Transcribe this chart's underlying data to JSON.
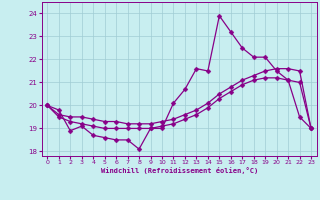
{
  "xlabel": "Windchill (Refroidissement éolien,°C)",
  "bg_color": "#c8eef0",
  "grid_color": "#a0ccd4",
  "line_color": "#880088",
  "marker": "D",
  "marker_size": 2.5,
  "line_width": 0.9,
  "ylim": [
    17.8,
    24.5
  ],
  "xlim": [
    -0.5,
    23.5
  ],
  "yticks": [
    18,
    19,
    20,
    21,
    22,
    23,
    24
  ],
  "xticks": [
    0,
    1,
    2,
    3,
    4,
    5,
    6,
    7,
    8,
    9,
    10,
    11,
    12,
    13,
    14,
    15,
    16,
    17,
    18,
    19,
    20,
    21,
    22,
    23
  ],
  "series": [
    [
      20.0,
      19.8,
      18.9,
      19.1,
      18.7,
      18.6,
      18.5,
      18.5,
      18.1,
      19.0,
      19.0,
      20.1,
      20.7,
      21.6,
      21.5,
      23.9,
      23.2,
      22.5,
      22.1,
      22.1,
      21.5,
      21.1,
      19.5,
      19.0
    ],
    [
      20.0,
      19.6,
      19.5,
      19.5,
      19.4,
      19.3,
      19.3,
      19.2,
      19.2,
      19.2,
      19.3,
      19.4,
      19.6,
      19.8,
      20.1,
      20.5,
      20.8,
      21.1,
      21.3,
      21.5,
      21.6,
      21.6,
      21.5,
      19.0
    ],
    [
      20.0,
      19.5,
      19.3,
      19.2,
      19.1,
      19.0,
      19.0,
      19.0,
      19.0,
      19.0,
      19.1,
      19.2,
      19.4,
      19.6,
      19.9,
      20.3,
      20.6,
      20.9,
      21.1,
      21.2,
      21.2,
      21.1,
      21.0,
      19.0
    ]
  ]
}
